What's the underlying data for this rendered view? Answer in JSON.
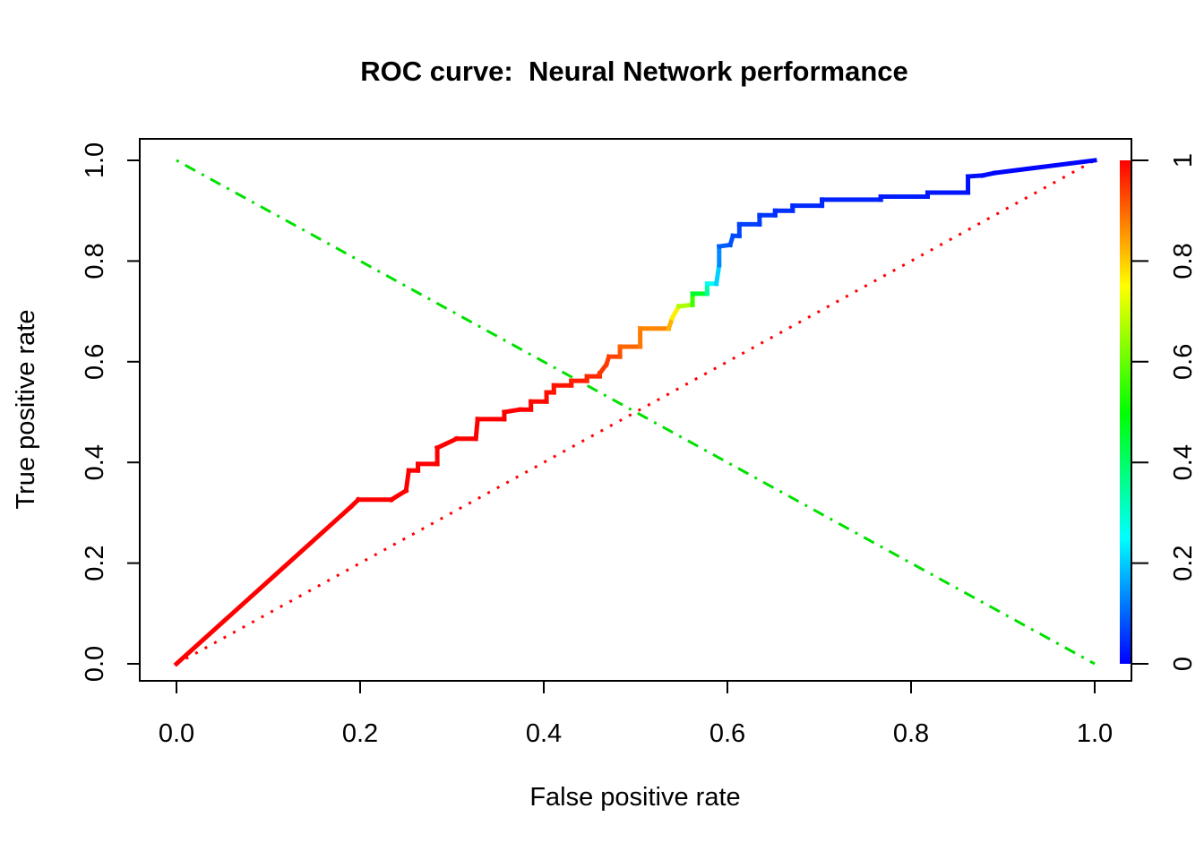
{
  "figure": {
    "title": "ROC curve:  Neural Network performance",
    "xlabel": "False positive rate",
    "ylabel": "True positive rate"
  },
  "chart_data": {
    "type": "line",
    "title": "ROC curve:  Neural Network performance",
    "xlabel": "False positive rate",
    "ylabel": "True positive rate",
    "xlim": [
      0,
      1
    ],
    "ylim": [
      0,
      1
    ],
    "grid": false,
    "x_axis": {
      "tick_values": [
        0.0,
        0.2,
        0.4,
        0.6,
        0.8,
        1.0
      ],
      "tick_labels": [
        "0.0",
        "0.2",
        "0.4",
        "0.6",
        "0.8",
        "1.0"
      ]
    },
    "y_axis": {
      "tick_values": [
        0.0,
        0.2,
        0.4,
        0.6,
        0.8,
        1.0
      ],
      "tick_labels": [
        "0.0",
        "0.2",
        "0.4",
        "0.6",
        "0.8",
        "1.0"
      ]
    },
    "colorbar": {
      "position": "right",
      "tick_values": [
        0,
        0.2,
        0.4,
        0.6,
        0.8,
        1
      ],
      "tick_labels": [
        "0",
        "0.2",
        "0.4",
        "0.6",
        "0.8",
        "1"
      ],
      "gradient_top_to_bottom": [
        {
          "offset": 0.0,
          "color": "#FF0000"
        },
        {
          "offset": 0.125,
          "color": "#FF8000"
        },
        {
          "offset": 0.25,
          "color": "#FFFF00"
        },
        {
          "offset": 0.5,
          "color": "#00FF00"
        },
        {
          "offset": 0.75,
          "color": "#00FFFF"
        },
        {
          "offset": 1.0,
          "color": "#0000FF"
        }
      ]
    },
    "series": [
      {
        "name": "roc-curve",
        "style": "step-line-colorized-by-cutoff",
        "points_xyv": [
          [
            0.0,
            0.0,
            1.0
          ],
          [
            0.19,
            0.312,
            1.0
          ],
          [
            0.198,
            0.326,
            1.0
          ],
          [
            0.234,
            0.326,
            1.0
          ],
          [
            0.25,
            0.344,
            1.0
          ],
          [
            0.253,
            0.384,
            1.0
          ],
          [
            0.263,
            0.384,
            1.0
          ],
          [
            0.263,
            0.397,
            1.0
          ],
          [
            0.284,
            0.397,
            1.0
          ],
          [
            0.284,
            0.429,
            1.0
          ],
          [
            0.305,
            0.447,
            1.0
          ],
          [
            0.326,
            0.447,
            1.0
          ],
          [
            0.328,
            0.486,
            1.0
          ],
          [
            0.357,
            0.486,
            1.0
          ],
          [
            0.357,
            0.5,
            1.0
          ],
          [
            0.374,
            0.505,
            1.0
          ],
          [
            0.386,
            0.505,
            1.0
          ],
          [
            0.386,
            0.521,
            0.99
          ],
          [
            0.403,
            0.521,
            0.99
          ],
          [
            0.403,
            0.539,
            0.99
          ],
          [
            0.411,
            0.539,
            0.98
          ],
          [
            0.411,
            0.553,
            0.98
          ],
          [
            0.43,
            0.553,
            0.98
          ],
          [
            0.43,
            0.562,
            0.97
          ],
          [
            0.447,
            0.562,
            0.97
          ],
          [
            0.447,
            0.571,
            0.96
          ],
          [
            0.461,
            0.571,
            0.96
          ],
          [
            0.461,
            0.577,
            0.95
          ],
          [
            0.468,
            0.594,
            0.945
          ],
          [
            0.471,
            0.61,
            0.94
          ],
          [
            0.483,
            0.61,
            0.93
          ],
          [
            0.483,
            0.63,
            0.91
          ],
          [
            0.505,
            0.63,
            0.89
          ],
          [
            0.505,
            0.666,
            0.875
          ],
          [
            0.536,
            0.666,
            0.86
          ],
          [
            0.54,
            0.687,
            0.79
          ],
          [
            0.547,
            0.71,
            0.74
          ],
          [
            0.562,
            0.713,
            0.6
          ],
          [
            0.562,
            0.735,
            0.52
          ],
          [
            0.578,
            0.735,
            0.4
          ],
          [
            0.578,
            0.755,
            0.28
          ],
          [
            0.588,
            0.755,
            0.24
          ],
          [
            0.591,
            0.792,
            0.17
          ],
          [
            0.591,
            0.829,
            0.1
          ],
          [
            0.603,
            0.832,
            0.085
          ],
          [
            0.606,
            0.85,
            0.075
          ],
          [
            0.613,
            0.85,
            0.07
          ],
          [
            0.613,
            0.873,
            0.065
          ],
          [
            0.635,
            0.873,
            0.06
          ],
          [
            0.635,
            0.891,
            0.055
          ],
          [
            0.652,
            0.891,
            0.05
          ],
          [
            0.652,
            0.9,
            0.048
          ],
          [
            0.671,
            0.9,
            0.045
          ],
          [
            0.671,
            0.91,
            0.043
          ],
          [
            0.703,
            0.91,
            0.04
          ],
          [
            0.703,
            0.922,
            0.038
          ],
          [
            0.767,
            0.922,
            0.033
          ],
          [
            0.767,
            0.928,
            0.03
          ],
          [
            0.818,
            0.928,
            0.026
          ],
          [
            0.818,
            0.936,
            0.023
          ],
          [
            0.862,
            0.936,
            0.02
          ],
          [
            0.862,
            0.968,
            0.015
          ],
          [
            0.878,
            0.97,
            0.012
          ],
          [
            0.891,
            0.975,
            0.01
          ],
          [
            1.0,
            1.0,
            0.0
          ]
        ]
      }
    ],
    "reference_lines": [
      {
        "name": "chance-diagonal",
        "x1": 0,
        "y1": 0,
        "x2": 1,
        "y2": 1,
        "color": "#FF0000",
        "dash": "dotted"
      },
      {
        "name": "anti-diagonal",
        "x1": 0,
        "y1": 1,
        "x2": 1,
        "y2": 0,
        "color": "#00E000",
        "dash": "dash-dot"
      }
    ]
  }
}
